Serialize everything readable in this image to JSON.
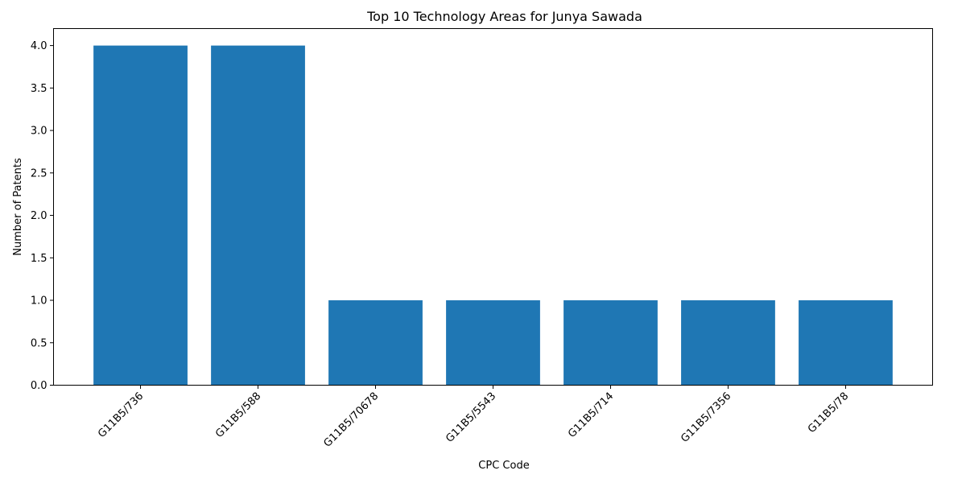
{
  "chart_data": {
    "type": "bar",
    "title": "Top 10 Technology Areas for Junya Sawada",
    "xlabel": "CPC Code",
    "ylabel": "Number of Patents",
    "categories": [
      "G11B5/736",
      "G11B5/588",
      "G11B5/70678",
      "G11B5/5543",
      "G11B5/714",
      "G11B5/7356",
      "G11B5/78"
    ],
    "values": [
      4,
      4,
      1,
      1,
      1,
      1,
      1
    ],
    "ylim": [
      0,
      4.2
    ],
    "yticks": [
      "0.0",
      "0.5",
      "1.0",
      "1.5",
      "2.0",
      "2.5",
      "3.0",
      "3.5",
      "4.0"
    ],
    "bar_color": "#1f77b4",
    "grid": false,
    "legend": "none"
  }
}
